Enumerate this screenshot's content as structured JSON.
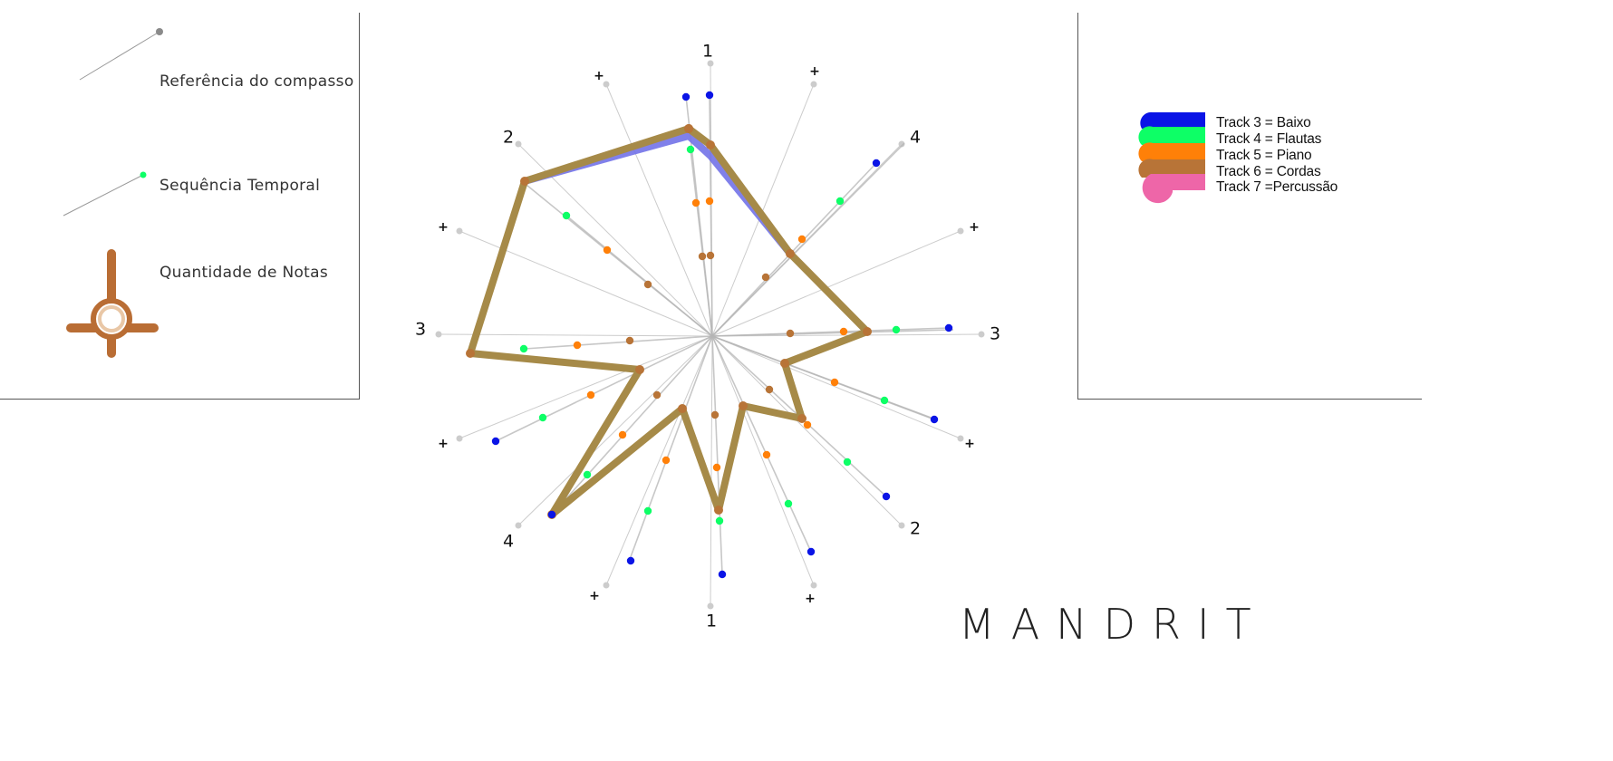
{
  "legend_left": {
    "items": [
      {
        "label": "Referência do compasso"
      },
      {
        "label": "Sequência Temporal"
      },
      {
        "label": "Quantidade de Notas"
      }
    ]
  },
  "legend_right": {
    "tracks": [
      {
        "label": "Track 3 = Baixo",
        "color": "#0a14e6"
      },
      {
        "label": "Track 4 = Flautas",
        "color": "#0dff66"
      },
      {
        "label": "Track 5 = Piano",
        "color": "#ff8008"
      },
      {
        "label": "Track 6 = Cordas",
        "color": "#b87437"
      },
      {
        "label": "Track 7 =Percussão",
        "color": "#ee66a8"
      }
    ]
  },
  "brand": "MANDRIT",
  "radial": {
    "beat_labels": [
      "1",
      "+",
      "2",
      "+",
      "3",
      "+",
      "4",
      "+",
      "1",
      "+",
      "2",
      "+",
      "3",
      "+",
      "4",
      "+"
    ],
    "colors": {
      "reference": "#cccccc",
      "timeline": "#b5b5b5",
      "outline": "#a68a48",
      "outline_blue": "#7272e8"
    }
  }
}
